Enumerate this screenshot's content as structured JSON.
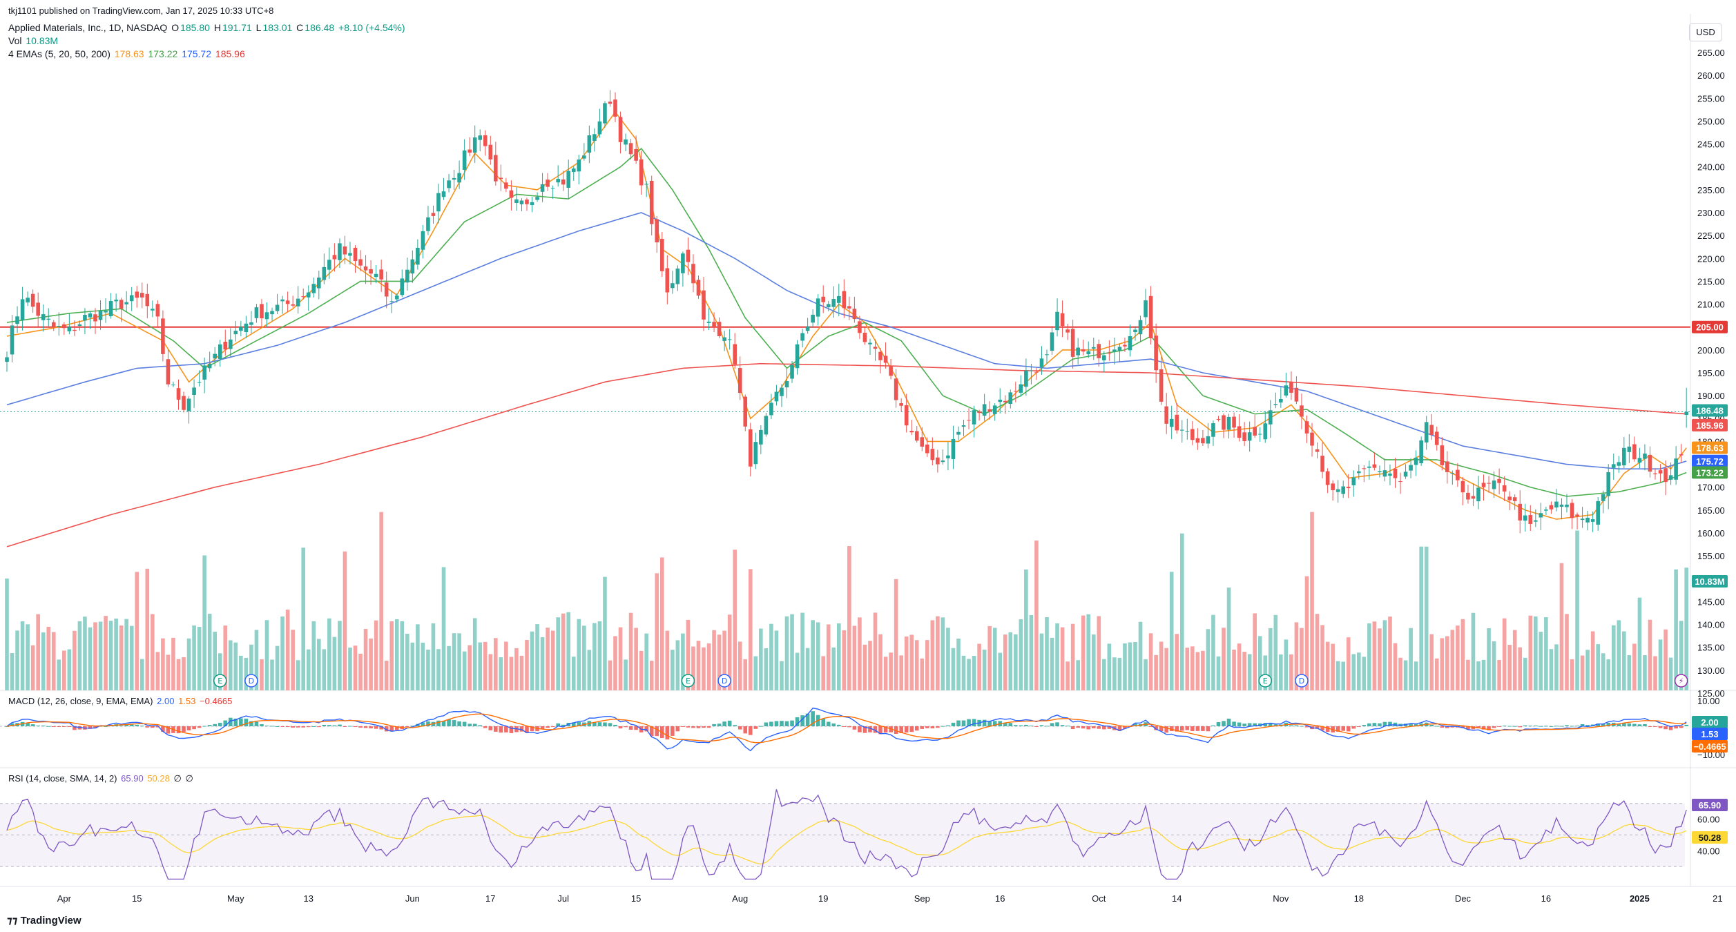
{
  "header": {
    "published": "tkj1101 published on TradingView.com, Jan 17, 2025 10:33 UTC+8",
    "symbol": "Applied Materials, Inc., 1D, NASDAQ",
    "o_label": "O",
    "o_value": "185.80",
    "h_label": "H",
    "h_value": "191.71",
    "l_label": "L",
    "l_value": "183.01",
    "c_label": "C",
    "c_value": "186.48",
    "change": "+8.10 (+4.54%)",
    "vol_label": "Vol",
    "vol_value": "10.83M",
    "ema_label": "4 EMAs (5, 20, 50, 200)",
    "ema_values": [
      "178.63",
      "173.22",
      "175.72",
      "185.96"
    ],
    "currency": "USD",
    "brand": "TradingView"
  },
  "macd_header": {
    "label": "MACD (12, 26, close, 9, EMA, EMA)",
    "values": [
      "2.00",
      "1.53",
      "−0.4665"
    ]
  },
  "rsi_header": {
    "label": "RSI (14, close, SMA, 14, 2)",
    "values": [
      "65.90",
      "50.28",
      "∅",
      "∅"
    ]
  },
  "colors": {
    "up": "#26a69a",
    "down": "#ef5350",
    "vol_up": "#8fd1c9",
    "vol_down": "#f5a3a3",
    "ema5": "#f7931a",
    "ema20": "#4caf50",
    "ema50": "#5b7fe0",
    "ema200": "#ef5350",
    "macd": "#2962ff",
    "signal": "#ff6d00",
    "rsi": "#7e57c2",
    "rsi_ma": "#fdd835",
    "resistance": "#e53935"
  },
  "chart_data": {
    "type": "candlestick",
    "price_axis": {
      "min": 125,
      "max": 265,
      "step": 5
    },
    "x_ticks": [
      "Apr",
      "15",
      "May",
      "13",
      "Jun",
      "17",
      "Jul",
      "15",
      "Aug",
      "19",
      "Sep",
      "16",
      "Oct",
      "14",
      "Nov",
      "18",
      "Dec",
      "16",
      "2025",
      "21"
    ],
    "x_tick_bar_index": [
      11,
      25,
      44,
      58,
      78,
      93,
      107,
      121,
      141,
      157,
      176,
      191,
      210,
      225,
      245,
      260,
      280,
      296,
      314,
      329
    ],
    "resistance": 205.0,
    "last_price": 186.48,
    "badges": {
      "close": "186.48",
      "ema200": "185.96",
      "ema5": "178.63",
      "ema50": "175.72",
      "ema20": "173.22",
      "resistance": "205.00",
      "volume": "10.83M",
      "macd": "2.00",
      "signal": "1.53",
      "hist": "−0.4665",
      "rsi": "65.90",
      "rsi_ma": "50.28"
    },
    "close_anchors": [
      [
        0,
        200
      ],
      [
        3,
        212
      ],
      [
        6,
        208
      ],
      [
        9,
        205
      ],
      [
        12,
        204
      ],
      [
        15,
        207
      ],
      [
        18,
        208
      ],
      [
        21,
        210
      ],
      [
        26,
        211
      ],
      [
        29,
        206
      ],
      [
        31,
        193
      ],
      [
        34,
        188
      ],
      [
        36,
        192
      ],
      [
        41,
        200
      ],
      [
        43,
        203
      ],
      [
        48,
        208
      ],
      [
        54,
        210
      ],
      [
        58,
        213
      ],
      [
        61,
        218
      ],
      [
        64,
        222
      ],
      [
        68,
        218
      ],
      [
        71,
        216
      ],
      [
        74,
        210
      ],
      [
        77,
        218
      ],
      [
        80,
        225
      ],
      [
        84,
        236
      ],
      [
        87,
        240
      ],
      [
        91,
        248
      ],
      [
        94,
        238
      ],
      [
        97,
        232
      ],
      [
        100,
        231
      ],
      [
        103,
        237
      ],
      [
        107,
        237
      ],
      [
        110,
        241
      ],
      [
        113,
        248
      ],
      [
        116,
        255
      ],
      [
        118,
        247
      ],
      [
        121,
        240
      ],
      [
        123,
        235
      ],
      [
        125,
        222
      ],
      [
        127,
        212
      ],
      [
        130,
        222
      ],
      [
        132,
        216
      ],
      [
        134,
        206
      ],
      [
        138,
        204
      ],
      [
        140,
        198
      ],
      [
        142,
        182
      ],
      [
        143,
        176
      ],
      [
        146,
        184
      ],
      [
        148,
        190
      ],
      [
        151,
        196
      ],
      [
        153,
        204
      ],
      [
        156,
        210
      ],
      [
        160,
        211
      ],
      [
        163,
        207
      ],
      [
        166,
        200
      ],
      [
        169,
        196
      ],
      [
        171,
        190
      ],
      [
        174,
        182
      ],
      [
        177,
        176
      ],
      [
        180,
        176
      ],
      [
        183,
        182
      ],
      [
        186,
        186
      ],
      [
        189,
        188
      ],
      [
        193,
        190
      ],
      [
        196,
        195
      ],
      [
        200,
        198
      ],
      [
        202,
        207
      ],
      [
        205,
        200
      ],
      [
        208,
        199
      ],
      [
        211,
        200
      ],
      [
        214,
        202
      ],
      [
        217,
        203
      ],
      [
        219,
        212
      ],
      [
        221,
        195
      ],
      [
        223,
        184
      ],
      [
        226,
        182
      ],
      [
        229,
        180
      ],
      [
        232,
        183
      ],
      [
        235,
        184
      ],
      [
        238,
        181
      ],
      [
        241,
        183
      ],
      [
        244,
        188
      ],
      [
        247,
        192
      ],
      [
        249,
        186
      ],
      [
        252,
        178
      ],
      [
        255,
        168
      ],
      [
        258,
        170
      ],
      [
        262,
        174
      ],
      [
        265,
        174
      ],
      [
        268,
        171
      ],
      [
        271,
        176
      ],
      [
        273,
        183
      ],
      [
        276,
        175
      ],
      [
        279,
        170
      ],
      [
        282,
        168
      ],
      [
        285,
        170
      ],
      [
        288,
        170
      ],
      [
        291,
        164
      ],
      [
        293,
        161
      ],
      [
        296,
        165
      ],
      [
        299,
        166
      ],
      [
        302,
        163
      ],
      [
        305,
        164
      ],
      [
        308,
        172
      ],
      [
        311,
        178
      ],
      [
        314,
        177
      ],
      [
        317,
        174
      ],
      [
        320,
        172
      ],
      [
        322,
        178
      ],
      [
        323,
        186.5
      ]
    ],
    "ema_lines": [
      {
        "name": "EMA 5",
        "anchors": [
          [
            0,
            203
          ],
          [
            10,
            205
          ],
          [
            20,
            208
          ],
          [
            30,
            202
          ],
          [
            35,
            193
          ],
          [
            42,
            200
          ],
          [
            55,
            209
          ],
          [
            65,
            220
          ],
          [
            75,
            212
          ],
          [
            82,
            226
          ],
          [
            90,
            243
          ],
          [
            96,
            236
          ],
          [
            102,
            235
          ],
          [
            110,
            241
          ],
          [
            117,
            252
          ],
          [
            121,
            246
          ],
          [
            126,
            222
          ],
          [
            131,
            218
          ],
          [
            137,
            205
          ],
          [
            143,
            185
          ],
          [
            148,
            190
          ],
          [
            155,
            203
          ],
          [
            160,
            210
          ],
          [
            165,
            206
          ],
          [
            171,
            194
          ],
          [
            177,
            180
          ],
          [
            183,
            180
          ],
          [
            190,
            186
          ],
          [
            197,
            194
          ],
          [
            203,
            200
          ],
          [
            210,
            200
          ],
          [
            216,
            202
          ],
          [
            220,
            206
          ],
          [
            225,
            188
          ],
          [
            232,
            182
          ],
          [
            240,
            183
          ],
          [
            247,
            188
          ],
          [
            253,
            180
          ],
          [
            258,
            172
          ],
          [
            265,
            173
          ],
          [
            272,
            177
          ],
          [
            278,
            173
          ],
          [
            285,
            169
          ],
          [
            292,
            165
          ],
          [
            298,
            163
          ],
          [
            305,
            164
          ],
          [
            311,
            173
          ],
          [
            316,
            177
          ],
          [
            320,
            174
          ],
          [
            323,
            178.6
          ]
        ]
      },
      {
        "name": "EMA 20",
        "anchors": [
          [
            0,
            206
          ],
          [
            12,
            208
          ],
          [
            22,
            209
          ],
          [
            32,
            202
          ],
          [
            38,
            196
          ],
          [
            48,
            202
          ],
          [
            58,
            208
          ],
          [
            68,
            215
          ],
          [
            78,
            215
          ],
          [
            88,
            228
          ],
          [
            98,
            234
          ],
          [
            108,
            233
          ],
          [
            118,
            240
          ],
          [
            122,
            244
          ],
          [
            128,
            235
          ],
          [
            135,
            222
          ],
          [
            142,
            207
          ],
          [
            150,
            196
          ],
          [
            158,
            203
          ],
          [
            165,
            206
          ],
          [
            172,
            202
          ],
          [
            180,
            190
          ],
          [
            188,
            186
          ],
          [
            195,
            190
          ],
          [
            205,
            198
          ],
          [
            215,
            200
          ],
          [
            220,
            203
          ],
          [
            230,
            190
          ],
          [
            240,
            186
          ],
          [
            250,
            187
          ],
          [
            257,
            182
          ],
          [
            265,
            176
          ],
          [
            275,
            176
          ],
          [
            285,
            173
          ],
          [
            293,
            170
          ],
          [
            300,
            168
          ],
          [
            310,
            169
          ],
          [
            318,
            171
          ],
          [
            323,
            173.2
          ]
        ]
      },
      {
        "name": "EMA 50",
        "anchors": [
          [
            0,
            188
          ],
          [
            15,
            193
          ],
          [
            25,
            196
          ],
          [
            38,
            197
          ],
          [
            52,
            201
          ],
          [
            65,
            206
          ],
          [
            80,
            213
          ],
          [
            95,
            220
          ],
          [
            110,
            226
          ],
          [
            122,
            230
          ],
          [
            130,
            226
          ],
          [
            140,
            220
          ],
          [
            150,
            213
          ],
          [
            160,
            208
          ],
          [
            170,
            205
          ],
          [
            180,
            201
          ],
          [
            190,
            197
          ],
          [
            200,
            196
          ],
          [
            210,
            197
          ],
          [
            220,
            198
          ],
          [
            230,
            195
          ],
          [
            240,
            193
          ],
          [
            250,
            191
          ],
          [
            260,
            187
          ],
          [
            270,
            183
          ],
          [
            280,
            179
          ],
          [
            290,
            177
          ],
          [
            300,
            175
          ],
          [
            310,
            174
          ],
          [
            318,
            174
          ],
          [
            323,
            175.7
          ]
        ]
      },
      {
        "name": "EMA 200",
        "anchors": [
          [
            0,
            157
          ],
          [
            20,
            164
          ],
          [
            40,
            170
          ],
          [
            60,
            175
          ],
          [
            80,
            181
          ],
          [
            100,
            188
          ],
          [
            115,
            193
          ],
          [
            130,
            196
          ],
          [
            145,
            197
          ],
          [
            170,
            196.5
          ],
          [
            195,
            195.5
          ],
          [
            220,
            195
          ],
          [
            240,
            193.5
          ],
          [
            260,
            192
          ],
          [
            280,
            190
          ],
          [
            300,
            188
          ],
          [
            323,
            186
          ]
        ]
      }
    ],
    "volume_axis": {
      "max": 12
    },
    "macd_axis": {
      "min": -10,
      "max": 10,
      "ticks": [
        "10.00",
        "−10.00"
      ]
    },
    "rsi_axis": {
      "ticks": [
        "60.00",
        "40.00"
      ],
      "upper": 70,
      "middle": 50,
      "lower": 30
    },
    "events": [
      {
        "symbol": "E",
        "bar": 41
      },
      {
        "symbol": "D",
        "bar": 47
      },
      {
        "symbol": "E",
        "bar": 131
      },
      {
        "symbol": "D",
        "bar": 138
      },
      {
        "symbol": "E",
        "bar": 242
      },
      {
        "symbol": "D",
        "bar": 249
      },
      {
        "symbol": "⚡",
        "bar": 322
      }
    ]
  }
}
